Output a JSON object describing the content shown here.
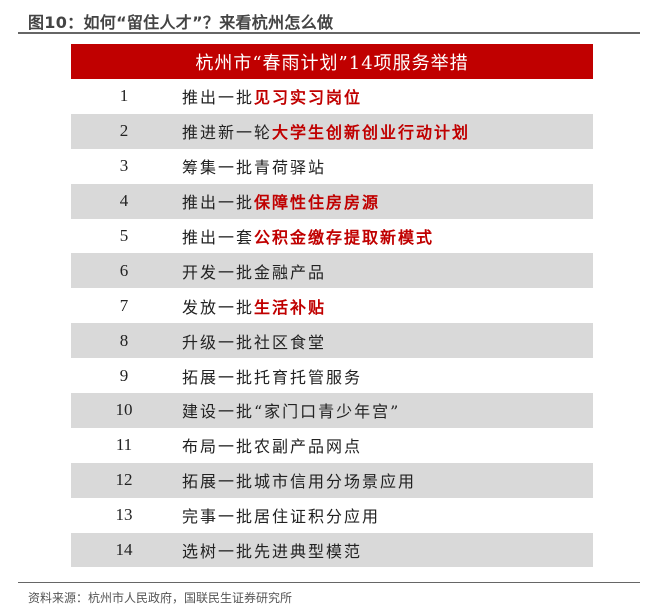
{
  "figure_title": "图10：如何“留住人才”？来看杭州怎么做",
  "table": {
    "header": "杭州市“春雨计划”14项服务举措",
    "highlight_color": "#c00000",
    "rows": [
      {
        "num": "1",
        "prefix": "推出一批",
        "highlight": "见习实习岗位"
      },
      {
        "num": "2",
        "prefix": "推进新一轮",
        "highlight": "大学生创新创业行动计划"
      },
      {
        "num": "3",
        "prefix": "筹集一批青荷驿站",
        "highlight": ""
      },
      {
        "num": "4",
        "prefix": "推出一批",
        "highlight": "保障性住房房源"
      },
      {
        "num": "5",
        "prefix": "推出一套",
        "highlight": "公积金缴存提取新模式"
      },
      {
        "num": "6",
        "prefix": "开发一批金融产品",
        "highlight": ""
      },
      {
        "num": "7",
        "prefix": "发放一批",
        "highlight": "生活补贴"
      },
      {
        "num": "8",
        "prefix": "升级一批社区食堂",
        "highlight": ""
      },
      {
        "num": "9",
        "prefix": "拓展一批托育托管服务",
        "highlight": ""
      },
      {
        "num": "10",
        "prefix": "建设一批“家门口青少年宫”",
        "highlight": ""
      },
      {
        "num": "11",
        "prefix": "布局一批农副产品网点",
        "highlight": ""
      },
      {
        "num": "12",
        "prefix": "拓展一批城市信用分场景应用",
        "highlight": ""
      },
      {
        "num": "13",
        "prefix": "完事一批居住证积分应用",
        "highlight": ""
      },
      {
        "num": "14",
        "prefix": "选树一批先进典型模范",
        "highlight": ""
      }
    ]
  },
  "source": "资料来源：杭州市人民政府，国联民生证券研究所"
}
